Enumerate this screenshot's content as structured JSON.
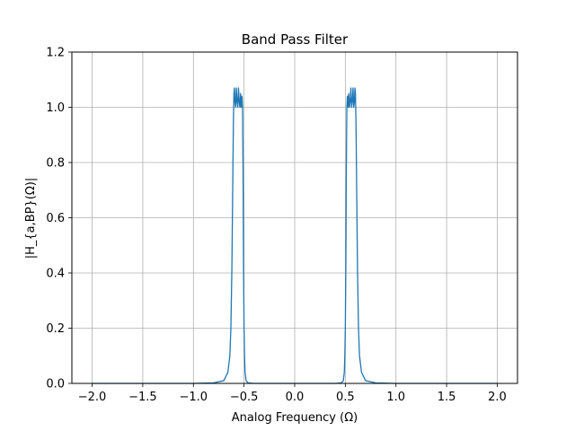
{
  "chart_data": {
    "type": "line",
    "title": "Band Pass Filter",
    "xlabel": "Analog Frequency (Ω)",
    "ylabel": "|H_{a,BP}(Ω)|",
    "xlim": [
      -2.2,
      2.2
    ],
    "ylim": [
      0,
      1.2
    ],
    "xticks": [
      -2.0,
      -1.5,
      -1.0,
      -0.5,
      0.0,
      0.5,
      1.0,
      1.5,
      2.0
    ],
    "xtick_labels": [
      "−2.0",
      "−1.5",
      "−1.0",
      "−0.5",
      "0.0",
      "0.5",
      "1.0",
      "1.5",
      "2.0"
    ],
    "yticks": [
      0.0,
      0.2,
      0.4,
      0.6,
      0.8,
      1.0,
      1.2
    ],
    "ytick_labels": [
      "0.0",
      "0.2",
      "0.4",
      "0.6",
      "0.8",
      "1.0",
      "1.2"
    ],
    "grid": true,
    "line_color": "#1f77b4",
    "series": [
      {
        "x": [
          -2.0,
          -1.0,
          -0.8,
          -0.7,
          -0.66,
          -0.64,
          -0.63,
          -0.62,
          -0.61,
          -0.605,
          -0.6,
          -0.595,
          -0.59,
          -0.583,
          -0.576,
          -0.569,
          -0.562,
          -0.555,
          -0.548,
          -0.541,
          -0.534,
          -0.527,
          -0.52,
          -0.515,
          -0.51,
          -0.505,
          -0.5,
          -0.495,
          -0.49,
          -0.48,
          -0.46,
          -0.4,
          -0.2,
          0.0,
          0.2,
          0.4,
          0.46,
          0.48,
          0.49,
          0.495,
          0.5,
          0.505,
          0.51,
          0.515,
          0.52,
          0.527,
          0.534,
          0.541,
          0.548,
          0.555,
          0.562,
          0.569,
          0.576,
          0.583,
          0.59,
          0.595,
          0.6,
          0.605,
          0.61,
          0.62,
          0.63,
          0.64,
          0.66,
          0.7,
          0.8,
          1.0,
          2.0
        ],
        "y": [
          0.0,
          0.0,
          0.002,
          0.01,
          0.04,
          0.1,
          0.2,
          0.42,
          0.78,
          0.95,
          1.05,
          1.07,
          1.02,
          1.0,
          1.07,
          1.02,
          1.0,
          1.07,
          1.02,
          1.0,
          1.05,
          1.0,
          1.04,
          1.0,
          0.78,
          0.42,
          0.2,
          0.1,
          0.04,
          0.01,
          0.002,
          0.0,
          0.0,
          0.0,
          0.0,
          0.0,
          0.002,
          0.01,
          0.04,
          0.1,
          0.2,
          0.42,
          0.78,
          1.0,
          1.04,
          1.0,
          1.05,
          1.0,
          1.02,
          1.07,
          1.0,
          1.02,
          1.07,
          1.0,
          1.02,
          1.07,
          1.05,
          0.95,
          0.78,
          0.42,
          0.2,
          0.1,
          0.04,
          0.01,
          0.002,
          0.0,
          0.0
        ]
      }
    ]
  }
}
